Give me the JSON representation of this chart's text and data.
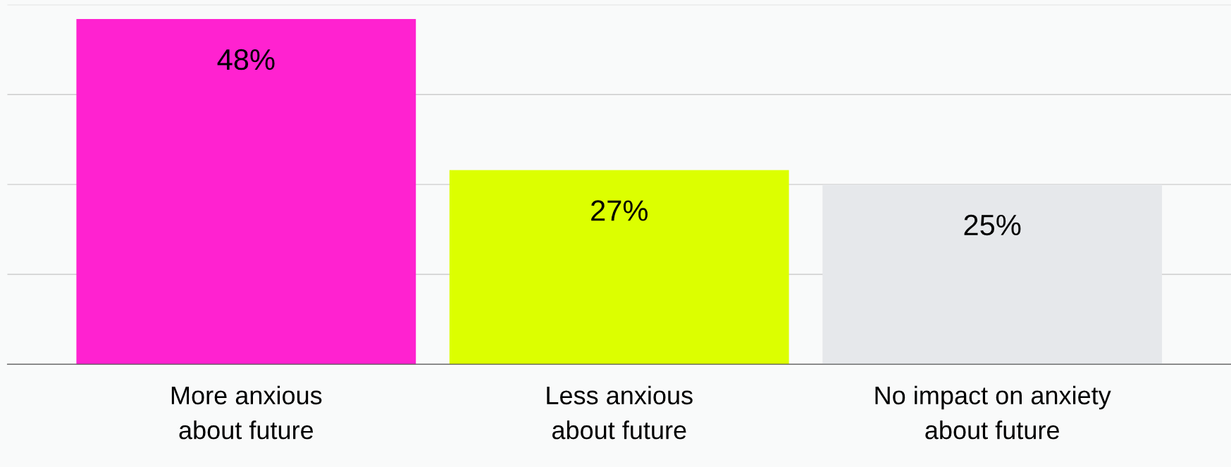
{
  "chart_data": {
    "type": "bar",
    "categories": [
      "More anxious\nabout future",
      "Less anxious\nabout future",
      "No impact on anxiety\nabout future"
    ],
    "values": [
      48,
      27,
      25
    ],
    "colors": [
      "#ff22d0",
      "#dcff00",
      "#e6e8eb"
    ],
    "value_labels": [
      "48%",
      "27%",
      "25%"
    ],
    "relative": false,
    "ylim": [
      0,
      50
    ],
    "yticks": [
      {
        "value": 0,
        "label": null
      },
      {
        "value": 12.5,
        "label": null
      },
      {
        "value": 25,
        "label": null
      },
      {
        "value": 37.5,
        "label": null
      },
      {
        "value": 50,
        "label": null
      }
    ],
    "tick_labels": "x",
    "grid": "y",
    "legend": false
  }
}
